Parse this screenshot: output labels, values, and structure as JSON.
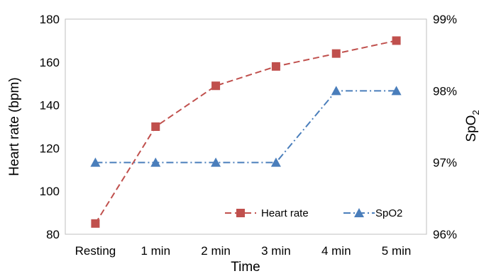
{
  "chart_data": {
    "type": "line",
    "xlabel": "Time",
    "ylabel_left": "Heart rate (bpm)",
    "ylabel_right_main": "SpO",
    "ylabel_right_sub": "2",
    "categories": [
      "Resting",
      "1 min",
      "2 min",
      "3 min",
      "4 min",
      "5 min"
    ],
    "left_axis": {
      "ylim": [
        80,
        180
      ],
      "ticks": [
        80,
        100,
        120,
        140,
        160,
        180
      ],
      "tick_labels": [
        "80",
        "100",
        "120",
        "140",
        "160",
        "180"
      ]
    },
    "right_axis": {
      "ylim": [
        96,
        99
      ],
      "ticks": [
        96,
        97,
        98,
        99
      ],
      "tick_labels": [
        "96%",
        "97%",
        "98%",
        "99%"
      ]
    },
    "series": [
      {
        "name": "Heart rate",
        "axis": "left",
        "values": [
          85,
          130,
          149,
          158,
          164,
          170
        ],
        "color": "#c0504d",
        "marker": "square",
        "dash": "dashed"
      },
      {
        "name": "SpO2",
        "axis": "right",
        "values": [
          97,
          97,
          97,
          97,
          98,
          98
        ],
        "color": "#4a7ebb",
        "marker": "triangle",
        "dash": "dash-dot"
      }
    ],
    "grid": false,
    "legend_position": "bottom-right"
  }
}
